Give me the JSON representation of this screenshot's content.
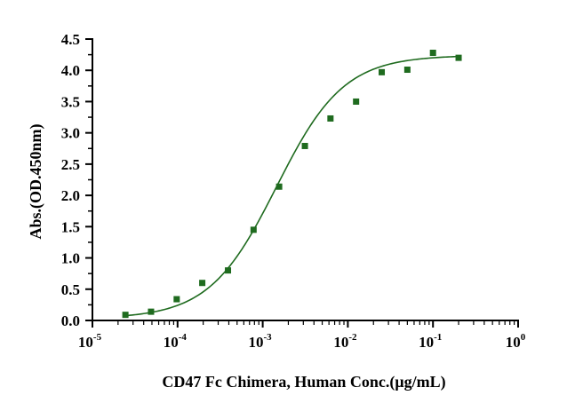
{
  "chart_data": {
    "type": "scatter",
    "xlabel": "CD47 Fc Chimera, Human Conc.(μg/mL)",
    "ylabel": "Abs.(OD.450nm)",
    "x_scale": "log",
    "xlim": [
      1e-05,
      1
    ],
    "ylim": [
      0,
      4.5
    ],
    "x_ticks": [
      {
        "base": "10",
        "exp": "-5"
      },
      {
        "base": "10",
        "exp": "-4"
      },
      {
        "base": "10",
        "exp": "-3"
      },
      {
        "base": "10",
        "exp": "-2"
      },
      {
        "base": "10",
        "exp": "-1"
      },
      {
        "base": "10",
        "exp": "0"
      }
    ],
    "y_ticks": [
      "0.0",
      "0.5",
      "1.0",
      "1.5",
      "2.0",
      "2.5",
      "3.0",
      "3.5",
      "4.0",
      "4.5"
    ],
    "grid": false,
    "legend": "none",
    "color": "#1f6b1f",
    "series": [
      {
        "marker": "square",
        "x": [
          2.44e-05,
          4.88e-05,
          9.77e-05,
          0.000195,
          0.000391,
          0.000781,
          0.00156,
          0.00313,
          0.00625,
          0.0125,
          0.025,
          0.05,
          0.1,
          0.2
        ],
        "y": [
          0.09,
          0.14,
          0.34,
          0.6,
          0.8,
          1.45,
          2.14,
          2.79,
          3.23,
          3.5,
          3.97,
          4.01,
          4.28,
          4.2
        ]
      }
    ],
    "fit": {
      "type": "4PL",
      "bottom": 0.03,
      "top": 4.24,
      "ec50": 0.00145,
      "hill": 1.1
    }
  }
}
